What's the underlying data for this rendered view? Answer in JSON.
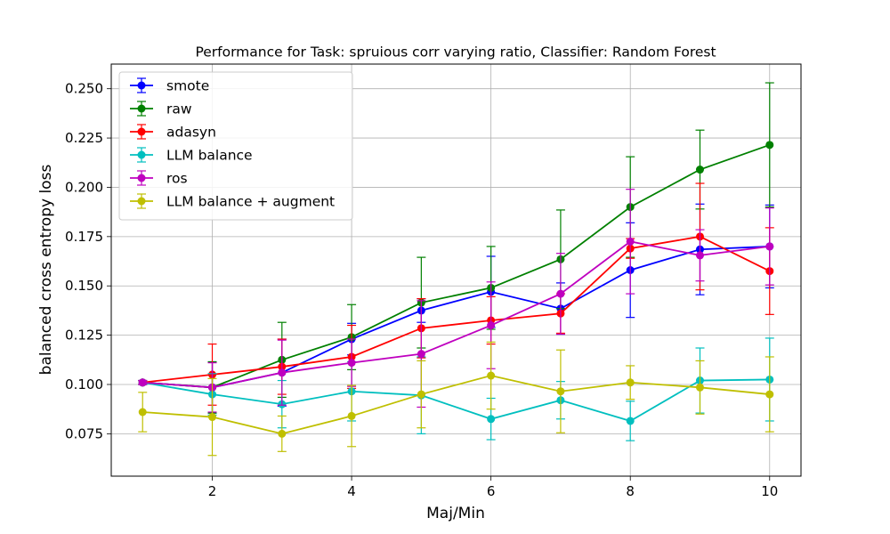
{
  "chart_data": {
    "type": "line",
    "title": "Performance for Task: spruious corr varying ratio, Classifier: Random Forest",
    "xlabel": "Maj/Min",
    "ylabel": "balanced cross entropy loss",
    "xlim": [
      0.55,
      10.45
    ],
    "ylim": [
      0.0535,
      0.2625
    ],
    "xticks": [
      2,
      4,
      6,
      8,
      10
    ],
    "yticks": [
      0.075,
      0.1,
      0.125,
      0.15,
      0.175,
      0.2,
      0.225,
      0.25
    ],
    "ytick_labels": [
      "0.075",
      "0.100",
      "0.125",
      "0.150",
      "0.175",
      "0.200",
      "0.225",
      "0.250"
    ],
    "grid": true,
    "legend_position": "upper-left",
    "x": [
      1,
      2,
      3,
      4,
      5,
      6,
      7,
      8,
      9,
      10
    ],
    "series": [
      {
        "name": "smote",
        "color": "#0000ff",
        "values": [
          0.101,
          0.0985,
          0.106,
          0.123,
          0.1375,
          0.147,
          0.1385,
          0.158,
          0.1685,
          0.17
        ],
        "err": [
          0.001,
          0.013,
          0.017,
          0.008,
          0.006,
          0.018,
          0.013,
          0.024,
          0.023,
          0.021
        ]
      },
      {
        "name": "raw",
        "color": "#008000",
        "values": [
          0.101,
          0.0985,
          0.1125,
          0.124,
          0.1415,
          0.149,
          0.1635,
          0.19,
          0.209,
          0.2215
        ],
        "err": [
          0.001,
          0.013,
          0.019,
          0.0165,
          0.023,
          0.021,
          0.025,
          0.0255,
          0.02,
          0.0315
        ]
      },
      {
        "name": "adasyn",
        "color": "#ff0000",
        "values": [
          0.101,
          0.105,
          0.109,
          0.114,
          0.1285,
          0.1325,
          0.136,
          0.169,
          0.175,
          0.1575
        ],
        "err": [
          0.001,
          0.0155,
          0.014,
          0.016,
          0.015,
          0.012,
          0.01,
          0.005,
          0.027,
          0.022
        ]
      },
      {
        "name": "LLM balance",
        "color": "#00bfbf",
        "values": [
          0.101,
          0.095,
          0.09,
          0.0965,
          0.0945,
          0.0825,
          0.092,
          0.0815,
          0.102,
          0.1025
        ],
        "err": [
          0.001,
          0.0105,
          0.012,
          0.015,
          0.0195,
          0.0105,
          0.0095,
          0.01,
          0.0165,
          0.021
        ]
      },
      {
        "name": "ros",
        "color": "#bf00bf",
        "values": [
          0.101,
          0.0985,
          0.106,
          0.111,
          0.1155,
          0.13,
          0.146,
          0.1725,
          0.1655,
          0.17
        ],
        "err": [
          0.001,
          0.0125,
          0.0165,
          0.012,
          0.027,
          0.022,
          0.0205,
          0.0265,
          0.013,
          0.0195
        ]
      },
      {
        "name": "LLM balance + augment",
        "color": "#bfbf00",
        "values": [
          0.086,
          0.0835,
          0.075,
          0.084,
          0.095,
          0.1045,
          0.0965,
          0.101,
          0.0985,
          0.095
        ],
        "err": [
          0.01,
          0.0195,
          0.009,
          0.0155,
          0.017,
          0.017,
          0.021,
          0.0085,
          0.0135,
          0.019
        ]
      }
    ]
  }
}
